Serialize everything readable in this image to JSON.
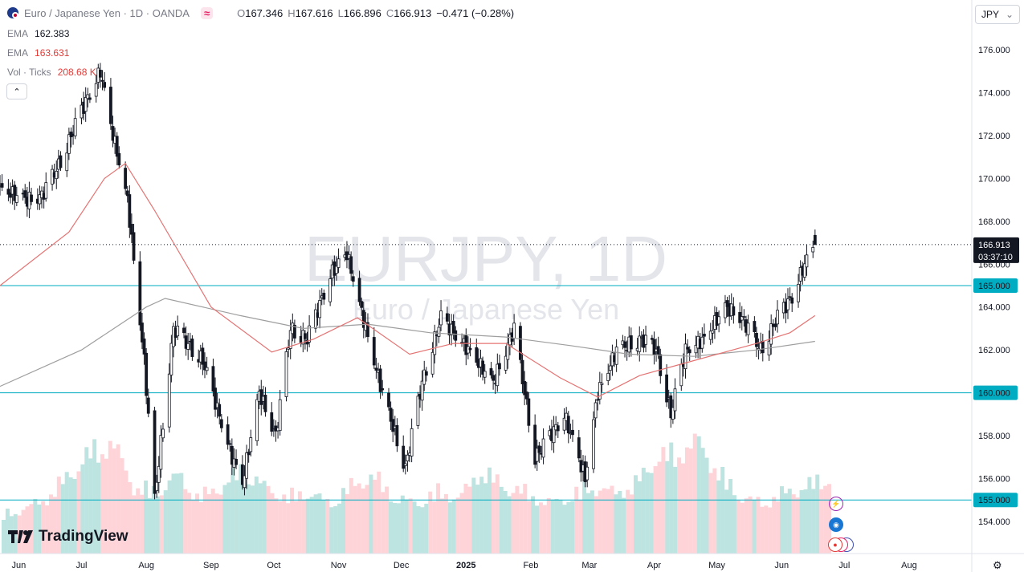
{
  "header": {
    "symbol_title": "Euro / Japanese Yen · 1D · OANDA",
    "compare_icon": "≈",
    "open_key": "O",
    "open": "167.346",
    "high_key": "H",
    "high": "167.616",
    "low_key": "L",
    "low": "166.896",
    "close_key": "C",
    "close": "166.913",
    "change": "−0.471 (−0.28%)"
  },
  "indicators": [
    {
      "label": "EMA",
      "value": "162.383",
      "color": "#787b86"
    },
    {
      "label": "EMA",
      "value": "163.631",
      "color": "#e53935"
    },
    {
      "label": "Vol · Ticks",
      "value": "208.68 K",
      "color": "#e53935"
    }
  ],
  "currency_button": {
    "label": "JPY",
    "icon": "chevron-down"
  },
  "watermark": {
    "symbol": "EURJPY, 1D",
    "name": "Euro / Japanese Yen"
  },
  "logo": {
    "text": "TradingView",
    "icon": "tv-logo"
  },
  "settings_icon": "gear",
  "colors": {
    "up": "#26a69a",
    "down": "#ef5350",
    "candle": "#131722",
    "ema_red": "#e57373",
    "ema_grey": "#9e9e9e",
    "hline": "#00acc1",
    "label_bg": "#131722",
    "hline_label_bg": "#00acc1",
    "vol_up": "#b2dfdb",
    "vol_down": "#ffcdd2"
  },
  "chart_data": {
    "type": "candlestick",
    "title": "EURJPY, 1D",
    "subtitle": "Euro / Japanese Yen",
    "y_ticks": [
      "176.000",
      "174.000",
      "172.000",
      "170.000",
      "168.000",
      "166.000",
      "164.000",
      "162.000",
      "160.000",
      "158.000",
      "156.000",
      "154.000"
    ],
    "y_range": [
      152.5,
      177.2
    ],
    "x_labels": [
      "Jun",
      "Jul",
      "Aug",
      "Sep",
      "Oct",
      "Nov",
      "Dec",
      "2025",
      "Feb",
      "Mar",
      "Apr",
      "May",
      "Jun",
      "Jul",
      "Aug"
    ],
    "price_anchors": [
      {
        "date": "2024-05-23",
        "close": 169.5
      },
      {
        "date": "2024-06-05",
        "close": 169.0
      },
      {
        "date": "2024-06-12",
        "close": 169.2
      },
      {
        "date": "2024-06-20",
        "close": 170.6
      },
      {
        "date": "2024-07-03",
        "close": 173.6
      },
      {
        "date": "2024-07-10",
        "close": 175.0
      },
      {
        "date": "2024-07-15",
        "close": 172.5
      },
      {
        "date": "2024-07-23",
        "close": 169.0
      },
      {
        "date": "2024-07-31",
        "close": 161.5
      },
      {
        "date": "2024-08-05",
        "close": 155.0
      },
      {
        "date": "2024-08-14",
        "close": 163.0
      },
      {
        "date": "2024-08-28",
        "close": 161.5
      },
      {
        "date": "2024-09-11",
        "close": 157.0
      },
      {
        "date": "2024-09-16",
        "close": 155.8
      },
      {
        "date": "2024-09-24",
        "close": 160.0
      },
      {
        "date": "2024-10-02",
        "close": 158.0
      },
      {
        "date": "2024-10-09",
        "close": 163.0
      },
      {
        "date": "2024-10-17",
        "close": 162.5
      },
      {
        "date": "2024-10-28",
        "close": 165.5
      },
      {
        "date": "2024-11-05",
        "close": 166.5
      },
      {
        "date": "2024-11-14",
        "close": 163.0
      },
      {
        "date": "2024-11-22",
        "close": 160.0
      },
      {
        "date": "2024-12-03",
        "close": 156.5
      },
      {
        "date": "2024-12-11",
        "close": 160.5
      },
      {
        "date": "2024-12-20",
        "close": 163.5
      },
      {
        "date": "2025-01-02",
        "close": 162.0
      },
      {
        "date": "2025-01-14",
        "close": 160.5
      },
      {
        "date": "2025-01-24",
        "close": 163.0
      },
      {
        "date": "2025-02-03",
        "close": 157.0
      },
      {
        "date": "2025-02-07",
        "close": 157.5
      },
      {
        "date": "2025-02-17",
        "close": 159.0
      },
      {
        "date": "2025-02-27",
        "close": 156.0
      },
      {
        "date": "2025-03-05",
        "close": 160.0
      },
      {
        "date": "2025-03-14",
        "close": 162.0
      },
      {
        "date": "2025-03-26",
        "close": 162.5
      },
      {
        "date": "2025-04-02",
        "close": 162.0
      },
      {
        "date": "2025-04-09",
        "close": 159.0
      },
      {
        "date": "2025-04-16",
        "close": 162.0
      },
      {
        "date": "2025-04-25",
        "close": 162.5
      },
      {
        "date": "2025-05-05",
        "close": 164.0
      },
      {
        "date": "2025-05-13",
        "close": 163.5
      },
      {
        "date": "2025-05-22",
        "close": 162.0
      },
      {
        "date": "2025-05-30",
        "close": 163.5
      },
      {
        "date": "2025-06-06",
        "close": 164.5
      },
      {
        "date": "2025-06-12",
        "close": 166.0
      },
      {
        "date": "2025-06-17",
        "close": 166.9
      }
    ],
    "last_candle": {
      "open": 167.346,
      "high": 167.616,
      "low": 166.896,
      "close": 166.913
    },
    "ema_red_anchors": [
      {
        "date": "2024-05-23",
        "v": 165.0
      },
      {
        "date": "2024-06-25",
        "v": 167.5
      },
      {
        "date": "2024-07-12",
        "v": 170.0
      },
      {
        "date": "2024-07-22",
        "v": 170.7
      },
      {
        "date": "2024-08-05",
        "v": 168.5
      },
      {
        "date": "2024-09-01",
        "v": 164.0
      },
      {
        "date": "2024-09-30",
        "v": 161.9
      },
      {
        "date": "2024-10-20",
        "v": 162.5
      },
      {
        "date": "2024-11-10",
        "v": 163.5
      },
      {
        "date": "2024-12-05",
        "v": 161.8
      },
      {
        "date": "2024-12-26",
        "v": 162.3
      },
      {
        "date": "2025-01-20",
        "v": 162.3
      },
      {
        "date": "2025-02-15",
        "v": 160.7
      },
      {
        "date": "2025-03-05",
        "v": 159.8
      },
      {
        "date": "2025-03-25",
        "v": 160.8
      },
      {
        "date": "2025-04-20",
        "v": 161.5
      },
      {
        "date": "2025-05-20",
        "v": 162.3
      },
      {
        "date": "2025-06-05",
        "v": 162.8
      },
      {
        "date": "2025-06-17",
        "v": 163.6
      }
    ],
    "ema_grey_anchors": [
      {
        "date": "2024-05-23",
        "v": 160.3
      },
      {
        "date": "2024-07-01",
        "v": 162.0
      },
      {
        "date": "2024-08-01",
        "v": 164.0
      },
      {
        "date": "2024-08-10",
        "v": 164.4
      },
      {
        "date": "2024-09-15",
        "v": 163.6
      },
      {
        "date": "2024-10-15",
        "v": 163.0
      },
      {
        "date": "2024-11-15",
        "v": 163.2
      },
      {
        "date": "2024-12-15",
        "v": 162.8
      },
      {
        "date": "2025-01-20",
        "v": 162.6
      },
      {
        "date": "2025-02-20",
        "v": 162.2
      },
      {
        "date": "2025-03-20",
        "v": 161.8
      },
      {
        "date": "2025-04-20",
        "v": 161.7
      },
      {
        "date": "2025-05-20",
        "v": 162.0
      },
      {
        "date": "2025-06-17",
        "v": 162.4
      }
    ],
    "volume_profile": [
      0.35,
      0.4,
      0.5,
      0.7,
      0.9,
      1.0,
      0.6,
      0.55,
      0.7,
      0.5,
      0.6,
      0.75,
      0.6,
      0.5,
      0.55,
      0.45,
      0.6,
      0.7,
      0.5,
      0.45,
      0.55,
      0.5,
      0.75,
      0.6,
      0.55,
      0.45,
      0.5,
      0.6,
      0.55,
      0.6,
      0.85,
      0.9,
      1.0,
      0.7,
      0.5,
      0.45,
      0.55,
      0.6,
      0.7
    ],
    "horizontal_levels": [
      {
        "label": "165.000",
        "value": 165.0
      },
      {
        "label": "160.000",
        "value": 160.0
      },
      {
        "label": "155.000",
        "value": 155.0
      }
    ],
    "last_price": {
      "label": "166.913",
      "countdown": "03:37:10",
      "value": 166.913
    }
  }
}
